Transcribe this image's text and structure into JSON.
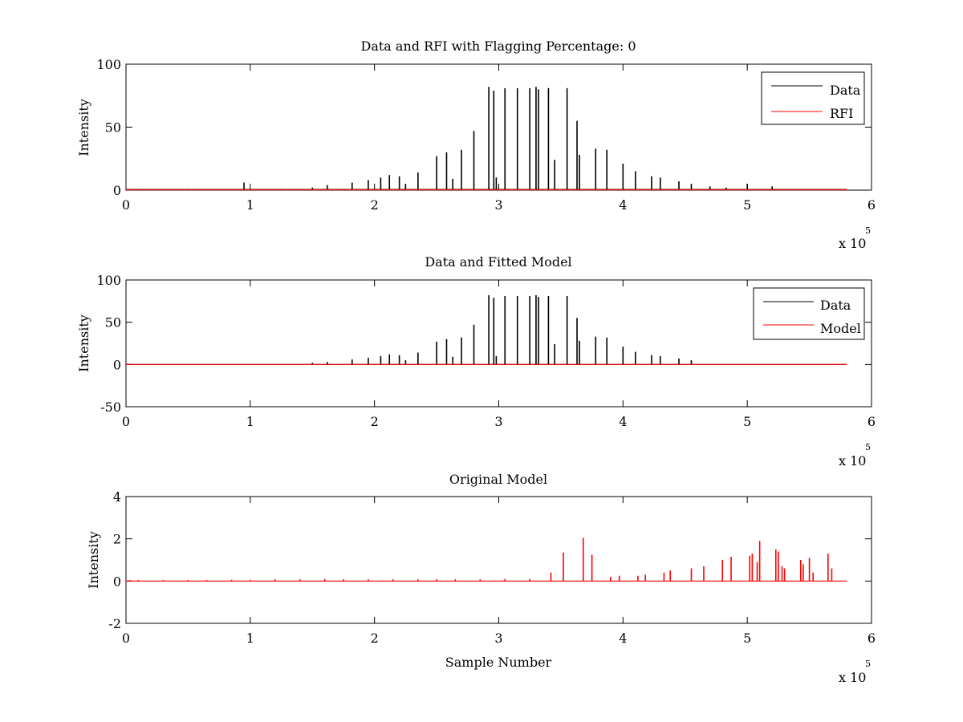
{
  "figure": {
    "background": "#ffffff"
  },
  "chart_data": [
    {
      "type": "line",
      "title": "Data and RFI with Flagging Percentage: 0",
      "xlabel": "",
      "ylabel": "Intensity",
      "xlim": [
        0,
        600000
      ],
      "ylim": [
        0,
        100
      ],
      "xticks": [
        0,
        1,
        2,
        3,
        4,
        5,
        6
      ],
      "yticks": [
        0,
        50,
        100
      ],
      "x_exponent": "x 10",
      "x_exponent_power": "5",
      "legend_position": "top-right",
      "legend": [
        "Data",
        "RFI"
      ],
      "colors": {
        "Data": "#000000",
        "RFI": "#ff0000"
      },
      "series": [
        {
          "name": "Data",
          "kind": "spikes",
          "baseline": 0.5,
          "x": [
            10000,
            50000,
            95000,
            125000,
            150000,
            162000,
            182000,
            195000,
            205000,
            212000,
            220000,
            225000,
            235000,
            250000,
            258000,
            263000,
            270000,
            280000,
            292000,
            296000,
            298000,
            305000,
            315000,
            325000,
            330000,
            332000,
            340000,
            345000,
            355000,
            363000,
            365000,
            378000,
            387000,
            400000,
            410000,
            423000,
            430000,
            445000,
            455000,
            470000,
            483000,
            500000,
            520000
          ],
          "y": [
            1,
            1,
            6,
            1,
            2,
            4,
            6,
            8,
            10,
            12,
            11,
            5,
            14,
            27,
            30,
            9,
            32,
            47,
            82,
            79,
            10,
            81,
            81,
            81,
            82,
            80,
            81,
            24,
            81,
            55,
            28,
            33,
            32,
            21,
            15,
            11,
            10,
            7,
            5,
            3,
            2,
            5,
            3
          ]
        },
        {
          "name": "RFI",
          "kind": "line",
          "x": [
            0,
            580000
          ],
          "y": [
            0.3,
            0.3
          ]
        }
      ]
    },
    {
      "type": "line",
      "title": "Data and Fitted Model",
      "xlabel": "",
      "ylabel": "Intensity",
      "xlim": [
        0,
        600000
      ],
      "ylim": [
        -50,
        100
      ],
      "xticks": [
        0,
        1,
        2,
        3,
        4,
        5,
        6
      ],
      "yticks": [
        -50,
        0,
        50,
        100
      ],
      "x_exponent": "x 10",
      "x_exponent_power": "5",
      "legend_position": "top-right",
      "legend": [
        "Data",
        "Model"
      ],
      "colors": {
        "Data": "#000000",
        "Model": "#ff0000"
      },
      "series": [
        {
          "name": "Data",
          "kind": "spikes",
          "baseline": 0,
          "x": [
            150000,
            162000,
            182000,
            195000,
            205000,
            212000,
            220000,
            225000,
            235000,
            250000,
            258000,
            263000,
            270000,
            280000,
            292000,
            296000,
            298000,
            305000,
            315000,
            325000,
            330000,
            332000,
            340000,
            345000,
            355000,
            363000,
            365000,
            378000,
            387000,
            400000,
            410000,
            423000,
            430000,
            445000,
            455000
          ],
          "y": [
            2,
            3,
            6,
            8,
            10,
            12,
            11,
            5,
            14,
            27,
            30,
            9,
            32,
            47,
            82,
            79,
            10,
            81,
            81,
            81,
            82,
            80,
            81,
            24,
            81,
            55,
            28,
            33,
            32,
            21,
            15,
            11,
            10,
            7,
            5
          ]
        },
        {
          "name": "Model",
          "kind": "line",
          "x": [
            0,
            580000
          ],
          "y": [
            0,
            0
          ]
        }
      ]
    },
    {
      "type": "line",
      "title": "Original Model",
      "xlabel": "Sample Number",
      "ylabel": "Intensity",
      "xlim": [
        0,
        600000
      ],
      "ylim": [
        -2,
        4
      ],
      "xticks": [
        0,
        1,
        2,
        3,
        4,
        5,
        6
      ],
      "yticks": [
        -2,
        0,
        2,
        4
      ],
      "x_exponent": "x 10",
      "x_exponent_power": "5",
      "colors": {
        "Model": "#ff0000"
      },
      "series": [
        {
          "name": "",
          "kind": "spikes",
          "color": "#ff0000",
          "baseline": 0,
          "x": [
            3000,
            10000,
            30000,
            50000,
            65000,
            85000,
            100000,
            120000,
            140000,
            160000,
            175000,
            195000,
            215000,
            235000,
            250000,
            265000,
            285000,
            305000,
            325000,
            342000,
            352000,
            368000,
            375000,
            390000,
            397000,
            412000,
            418000,
            433000,
            438000,
            455000,
            465000,
            480000,
            487000,
            502000,
            504000,
            508000,
            510000,
            523000,
            525000,
            528000,
            530000,
            543000,
            545000,
            550000,
            553000,
            565000,
            568000
          ],
          "y": [
            0.05,
            0.05,
            0.05,
            0.05,
            0.05,
            0.06,
            0.06,
            0.08,
            0.08,
            0.1,
            0.08,
            0.08,
            0.08,
            0.08,
            0.08,
            0.08,
            0.08,
            0.1,
            0.1,
            0.4,
            1.35,
            2.05,
            1.25,
            0.2,
            0.25,
            0.25,
            0.3,
            0.4,
            0.5,
            0.6,
            0.7,
            1.0,
            1.15,
            1.2,
            1.3,
            0.9,
            1.9,
            1.5,
            1.4,
            0.7,
            0.6,
            1.0,
            0.8,
            1.1,
            0.4,
            1.3,
            0.6
          ]
        }
      ]
    }
  ]
}
